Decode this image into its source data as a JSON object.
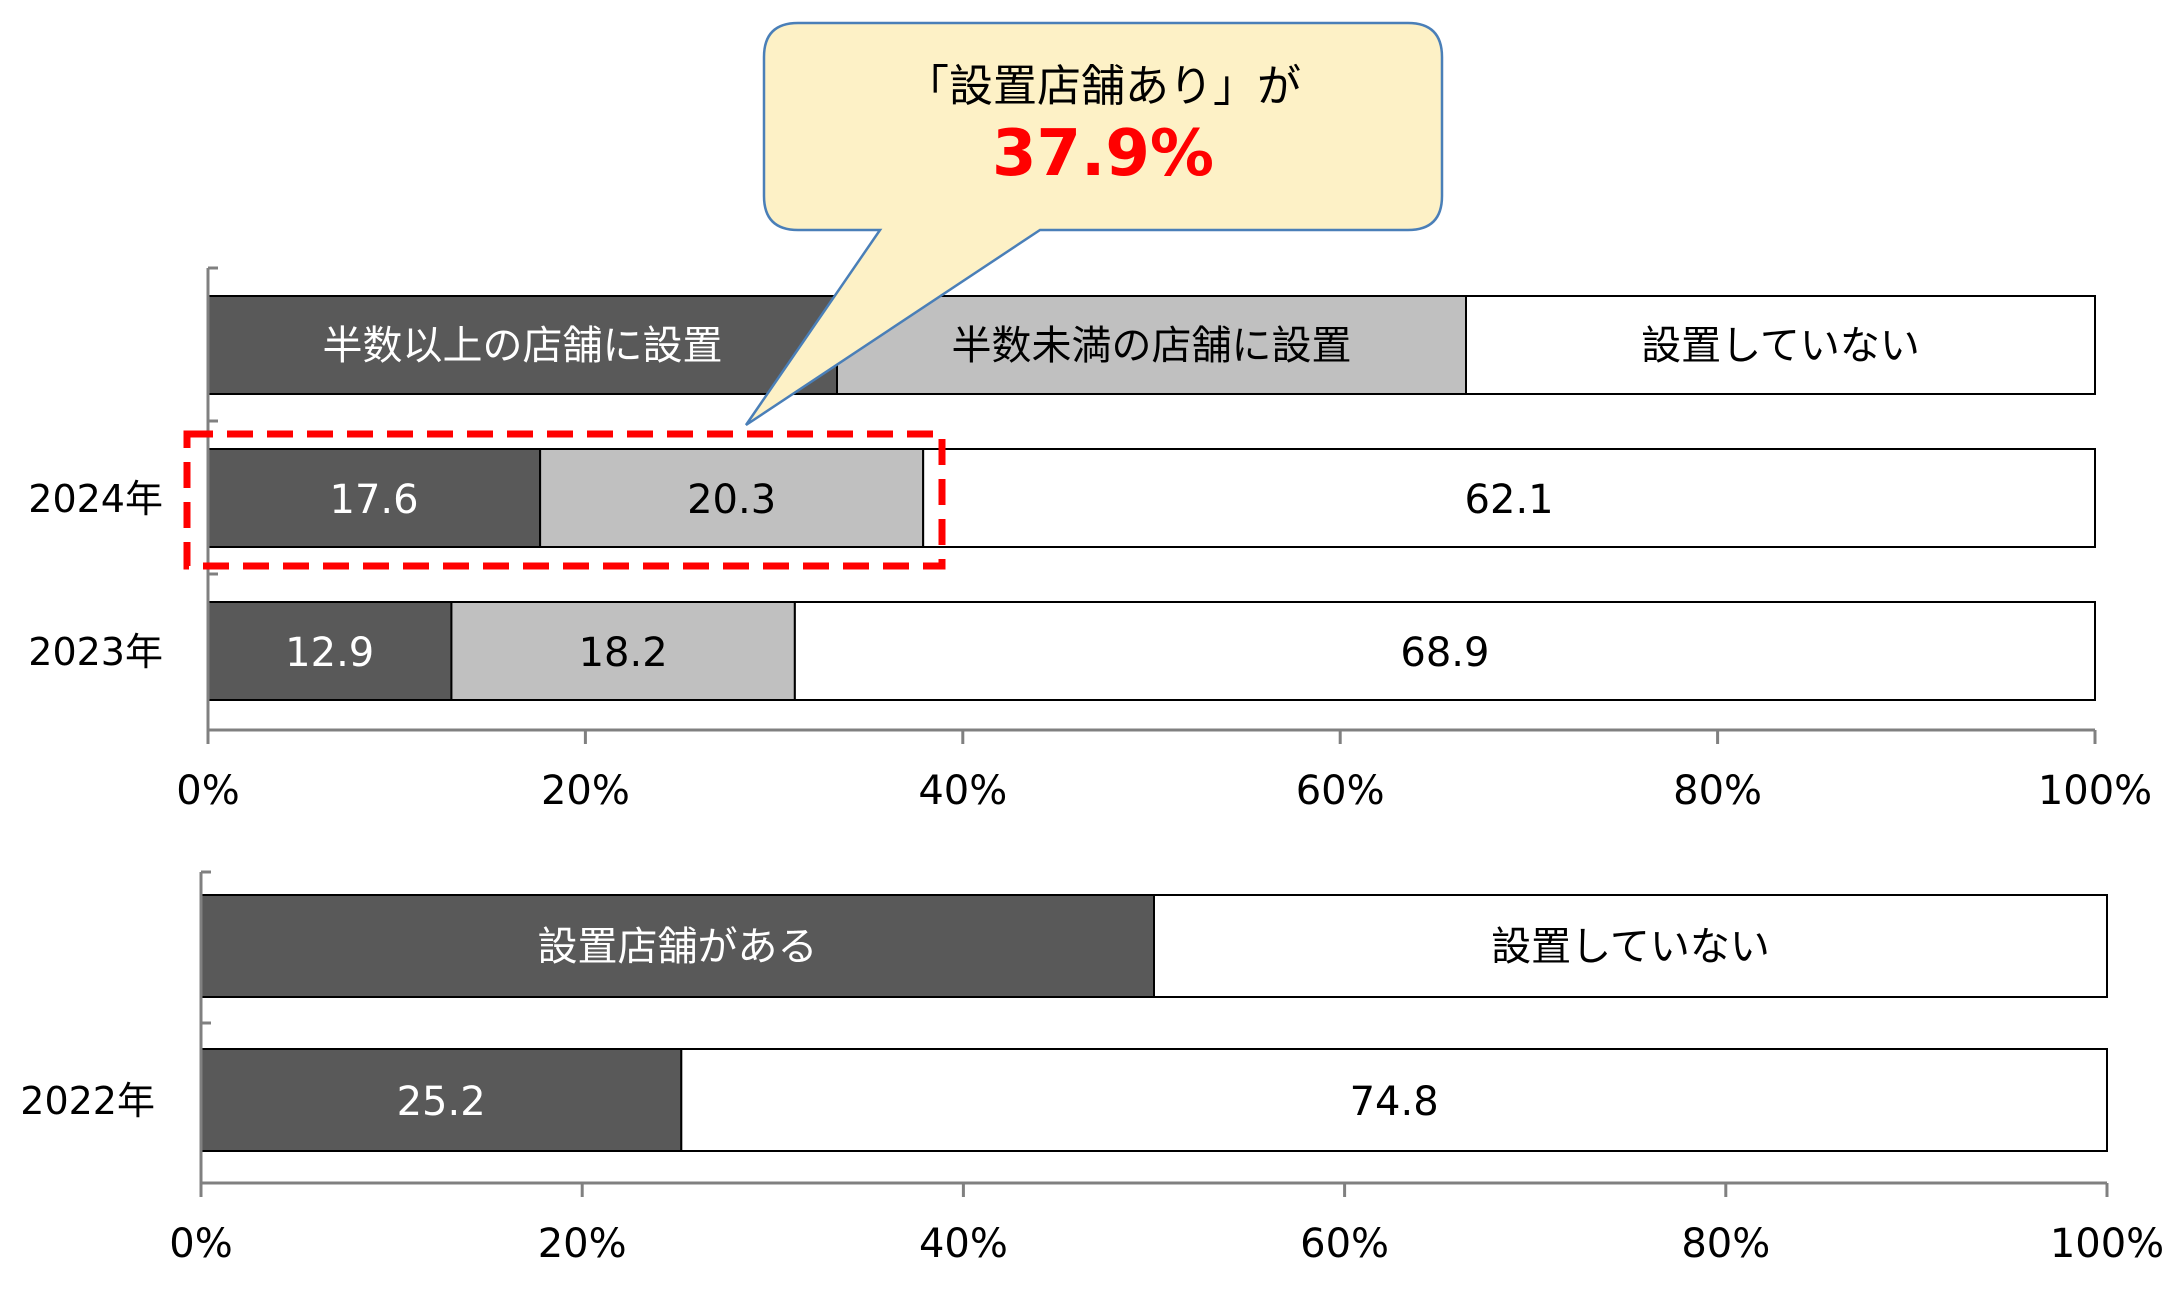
{
  "callout": {
    "line1": "「設置店舗あり」が",
    "value": "37.9%",
    "value_color": "#ff0000",
    "fill_color": "#fdf1c6",
    "border_color": "#4a7fb8"
  },
  "highlight_color": "#ff0000",
  "colors": {
    "dark": "#595959",
    "light": "#c0c0c0",
    "white": "#ffffff",
    "outline": "#000000",
    "axis": "#808080"
  },
  "chart_data": [
    {
      "type": "bar",
      "orientation": "horizontal",
      "stacked": true,
      "legend_placement": "top",
      "legend": [
        "半数以上の店舗に設置",
        "半数未満の店舗に設置",
        "設置していない"
      ],
      "categories": [
        "2024年",
        "2023年"
      ],
      "series": [
        {
          "name": "半数以上の店舗に設置",
          "color": "#595959",
          "values": [
            17.6,
            12.9
          ]
        },
        {
          "name": "半数未満の店舗に設置",
          "color": "#c0c0c0",
          "values": [
            20.3,
            18.2
          ]
        },
        {
          "name": "設置していない",
          "color": "#ffffff",
          "values": [
            62.1,
            68.9
          ]
        }
      ],
      "xlim": [
        0,
        100
      ],
      "x_ticks": [
        "0%",
        "20%",
        "40%",
        "60%",
        "80%",
        "100%"
      ],
      "grid": false
    },
    {
      "type": "bar",
      "orientation": "horizontal",
      "stacked": true,
      "legend_placement": "top",
      "legend": [
        "設置店舗がある",
        "設置していない"
      ],
      "categories": [
        "2022年"
      ],
      "series": [
        {
          "name": "設置店舗がある",
          "color": "#595959",
          "values": [
            25.2
          ]
        },
        {
          "name": "設置していない",
          "color": "#ffffff",
          "values": [
            74.8
          ]
        }
      ],
      "xlim": [
        0,
        100
      ],
      "x_ticks": [
        "0%",
        "20%",
        "40%",
        "60%",
        "80%",
        "100%"
      ],
      "grid": false
    }
  ]
}
